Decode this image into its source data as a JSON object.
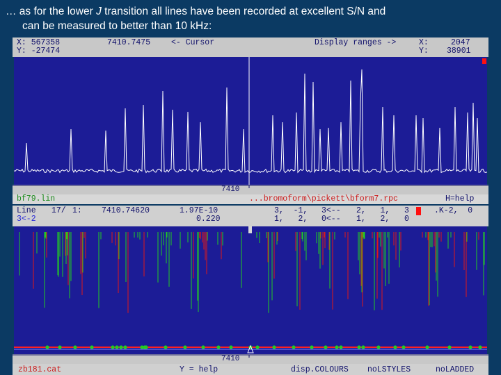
{
  "caption": {
    "line1_pre": "… as for the lower ",
    "line1_italic": "J",
    "line1_post": " transition all lines have been recorded at excellent S/N and",
    "line2": "can be measured to better than 10 kHz:"
  },
  "top_panel": {
    "x_label": "X: 567358",
    "y_label": "Y: -27474",
    "cursor_value": "7410.7475",
    "cursor_label": "<- Cursor",
    "display_ranges_label": "Display ranges ->",
    "dx_label": "X:",
    "dx_value": "2047",
    "dy_label": "Y:",
    "dy_value": "38901",
    "axis_tick": "7410"
  },
  "mid_bar": {
    "lin_file": "bf79.lin",
    "path": "...bromoform\\pickett\\bform7.rpc",
    "help": "H=help"
  },
  "bottom_panel": {
    "line_label": "Line",
    "line_index": "17/",
    "line_sub": "1:",
    "line_freq": "7410.74620",
    "intensity": "1.97E-10",
    "error": "0.220",
    "qn_upper": "3,  -1,",
    "qn_upper2": "3<--",
    "qn_upper3": "2,   1,   3",
    "ka_label": ".K-2,  0",
    "status": "3<-2",
    "qn_lower": "1,   2,",
    "qn_lower2": "0<--",
    "qn_lower3": "1,   2,   0",
    "axis_tick": "7410",
    "cat_file": "zb181.cat",
    "y_help": "Y = help",
    "btn_colours": "disp.COLOURS",
    "btn_nostyles": "noLSTYLES",
    "btn_laddered": "noLADDED"
  },
  "colors": {
    "background": "#0b3a63",
    "plot_bg": "#1c1c96",
    "trace": "#ffffff",
    "stick_green": "#22cc22",
    "stick_red": "#e01818",
    "panel_gray": "#c8c8c8"
  }
}
